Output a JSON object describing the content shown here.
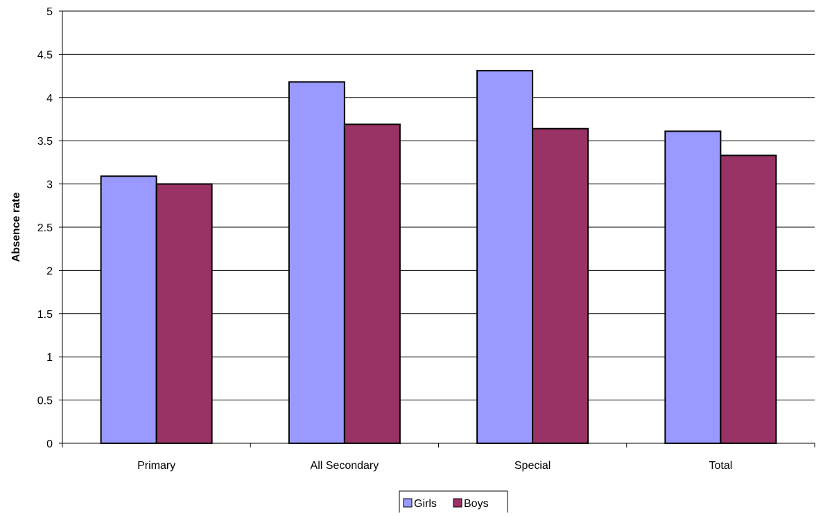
{
  "chart_data": {
    "type": "bar",
    "title": "",
    "xlabel": "",
    "ylabel": "Absence rate",
    "ylim": [
      0,
      5
    ],
    "yticks": [
      0,
      0.5,
      1,
      1.5,
      2,
      2.5,
      3,
      3.5,
      4,
      4.5,
      5
    ],
    "ytick_labels": [
      "0",
      "0.5",
      "1",
      "1.5",
      "2",
      "2.5",
      "3",
      "3.5",
      "4",
      "4.5",
      "5"
    ],
    "grid": true,
    "legend_position": "bottom-center",
    "categories": [
      "Primary",
      "All Secondary",
      "Special",
      "Total"
    ],
    "series": [
      {
        "name": "Girls",
        "color": "#9999ff",
        "values": [
          3.09,
          4.18,
          4.31,
          3.61
        ]
      },
      {
        "name": "Boys",
        "color": "#993366",
        "values": [
          3.0,
          3.69,
          3.64,
          3.33
        ]
      }
    ]
  }
}
